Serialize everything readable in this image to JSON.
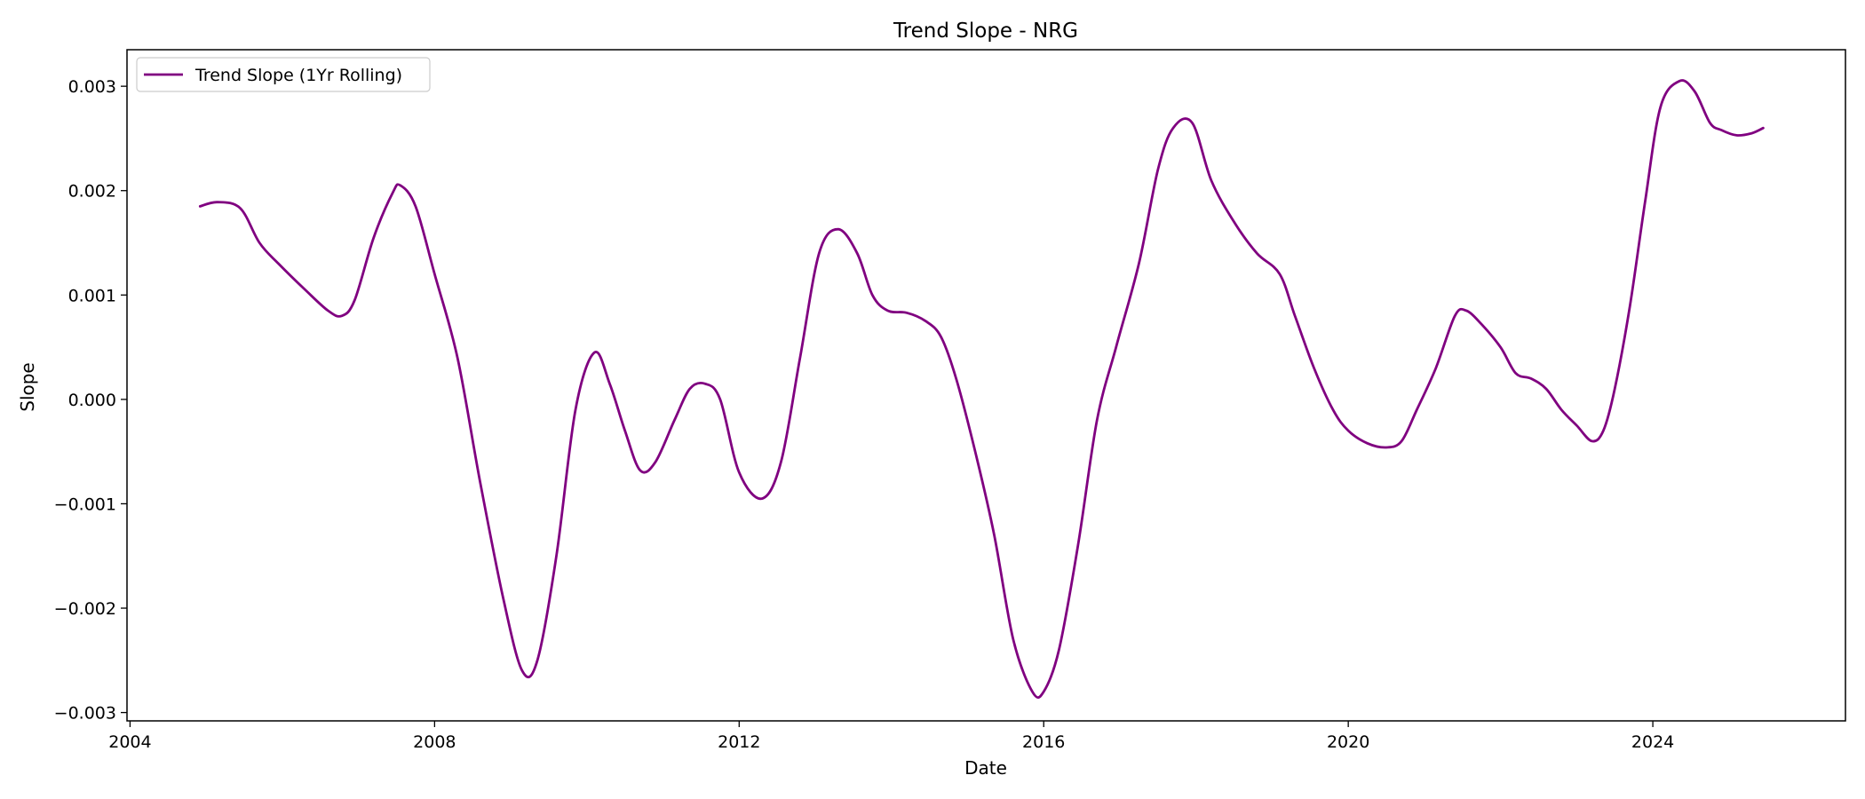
{
  "chart_data": {
    "type": "line",
    "title": "Trend Slope - NRG",
    "xlabel": "Date",
    "ylabel": "Slope",
    "x_ticks": [
      2004,
      2008,
      2012,
      2016,
      2020,
      2024
    ],
    "x_tick_labels": [
      "2004",
      "2008",
      "2012",
      "2016",
      "2020",
      "2024"
    ],
    "y_ticks": [
      -0.003,
      -0.002,
      -0.001,
      0.0,
      0.001,
      0.002,
      0.003
    ],
    "y_tick_labels": [
      "−0.003",
      "−0.002",
      "−0.001",
      "0.000",
      "0.001",
      "0.002",
      "0.003"
    ],
    "xlim": [
      2003.96,
      2026.53
    ],
    "ylim": [
      -0.00308,
      0.00335
    ],
    "grid": false,
    "legend_position": "top-left",
    "series": [
      {
        "name": "Trend Slope (1Yr Rolling)",
        "color": "#800080",
        "x": [
          2004.92,
          2005.15,
          2005.45,
          2005.7,
          2005.95,
          2006.3,
          2006.6,
          2006.78,
          2006.95,
          2007.2,
          2007.45,
          2007.55,
          2007.75,
          2008.0,
          2008.3,
          2008.6,
          2008.9,
          2009.15,
          2009.35,
          2009.6,
          2009.85,
          2010.1,
          2010.3,
          2010.5,
          2010.7,
          2010.9,
          2011.15,
          2011.35,
          2011.55,
          2011.75,
          2012.0,
          2012.3,
          2012.55,
          2012.8,
          2013.05,
          2013.3,
          2013.55,
          2013.75,
          2013.95,
          2014.2,
          2014.45,
          2014.65,
          2014.85,
          2015.1,
          2015.35,
          2015.6,
          2015.85,
          2016.0,
          2016.2,
          2016.45,
          2016.7,
          2016.95,
          2017.25,
          2017.5,
          2017.7,
          2017.95,
          2018.2,
          2018.5,
          2018.8,
          2019.1,
          2019.3,
          2019.55,
          2019.8,
          2020.0,
          2020.25,
          2020.5,
          2020.7,
          2020.9,
          2021.15,
          2021.4,
          2021.55,
          2021.75,
          2022.0,
          2022.2,
          2022.4,
          2022.6,
          2022.8,
          2023.0,
          2023.2,
          2023.35,
          2023.5,
          2023.7,
          2023.9,
          2024.1,
          2024.35,
          2024.55,
          2024.75,
          2024.9,
          2025.1,
          2025.3,
          2025.45
        ],
        "y": [
          0.00185,
          0.00189,
          0.00183,
          0.0015,
          0.0013,
          0.00105,
          0.00085,
          0.0008,
          0.00095,
          0.00155,
          0.00198,
          0.00205,
          0.00185,
          0.0012,
          0.0004,
          -0.0008,
          -0.0019,
          -0.0026,
          -0.0025,
          -0.0015,
          -0.0001,
          0.00045,
          0.00015,
          -0.0003,
          -0.00068,
          -0.0006,
          -0.0002,
          0.0001,
          0.00015,
          0.0,
          -0.0007,
          -0.00095,
          -0.0006,
          0.0004,
          0.0014,
          0.00163,
          0.0014,
          0.001,
          0.00085,
          0.00083,
          0.00075,
          0.0006,
          0.0002,
          -0.0005,
          -0.0013,
          -0.0023,
          -0.0028,
          -0.0028,
          -0.0024,
          -0.0014,
          -0.0002,
          0.0005,
          0.0013,
          0.0022,
          0.0026,
          0.00265,
          0.0021,
          0.0017,
          0.0014,
          0.0012,
          0.0008,
          0.0003,
          -0.0001,
          -0.0003,
          -0.00042,
          -0.00046,
          -0.0004,
          -0.0001,
          0.0003,
          0.0008,
          0.00085,
          0.00072,
          0.0005,
          0.00025,
          0.0002,
          0.0001,
          -0.0001,
          -0.00025,
          -0.0004,
          -0.0003,
          0.0001,
          0.0009,
          0.0019,
          0.0028,
          0.00305,
          0.00295,
          0.00265,
          0.00258,
          0.00253,
          0.00255,
          0.0026
        ]
      }
    ]
  }
}
